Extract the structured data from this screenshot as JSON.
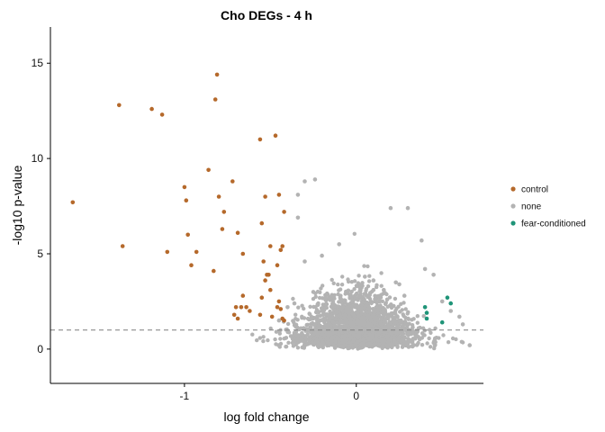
{
  "chart_data": {
    "type": "scatter",
    "title": "Cho DEGs - 4 h",
    "xlabel": "log fold change",
    "ylabel": "-log10 p-value",
    "xlim": [
      -1.78,
      0.74
    ],
    "ylim": [
      -1.8,
      16.9
    ],
    "xticks": [
      -1,
      0
    ],
    "xtick_labels": [
      "-1",
      "0"
    ],
    "yticks": [
      0,
      5,
      10,
      15
    ],
    "ytick_labels": [
      "0",
      "5",
      "10",
      "15"
    ],
    "grid": false,
    "threshold_line": {
      "y": 1.0,
      "style": "dashed",
      "color": "#8c8c8c"
    },
    "legend": {
      "position": "right",
      "entries": [
        {
          "label": "control",
          "color": "#b5692b"
        },
        {
          "label": "none",
          "color": "#b3b3b3"
        },
        {
          "label": "fear-conditioned",
          "color": "#1f9478"
        }
      ]
    },
    "series": [
      {
        "name": "control",
        "color": "#b5692b",
        "x": [
          -1.65,
          -1.38,
          -1.36,
          -1.19,
          -1.13,
          -1.0,
          -0.99,
          -0.98,
          -0.96,
          -1.1,
          -0.93,
          -0.86,
          -0.83,
          -0.82,
          -0.81,
          -0.77,
          -0.78,
          -0.8,
          -0.72,
          -0.69,
          -0.66,
          -0.66,
          -0.67,
          -0.64,
          -0.62,
          -0.56,
          -0.54,
          -0.53,
          -0.52,
          -0.51,
          -0.5,
          -0.47,
          -0.46,
          -0.45,
          -0.44,
          -0.43,
          -0.42,
          -0.55,
          -0.55,
          -0.45,
          -0.5,
          -0.49,
          -0.46,
          -0.44,
          -0.43,
          -0.42,
          -0.53,
          -0.56,
          -0.69,
          -0.71,
          -0.7
        ],
        "y": [
          7.7,
          12.8,
          5.4,
          12.6,
          12.3,
          8.5,
          7.8,
          6.0,
          4.4,
          5.1,
          5.1,
          9.4,
          4.1,
          13.1,
          14.4,
          7.2,
          6.3,
          8.0,
          8.8,
          6.1,
          5.0,
          2.8,
          2.2,
          2.2,
          2.0,
          11.0,
          4.6,
          3.6,
          3.9,
          3.9,
          5.4,
          11.2,
          4.4,
          8.1,
          5.2,
          5.4,
          7.2,
          6.6,
          2.7,
          2.5,
          3.1,
          1.7,
          2.2,
          2.1,
          1.6,
          1.5,
          8.0,
          1.8,
          1.6,
          1.8,
          2.2
        ]
      },
      {
        "name": "none",
        "color": "#b3b3b3",
        "x": [
          -0.34,
          -0.34,
          -0.3,
          -0.24,
          -0.2,
          -0.1,
          0.2,
          0.3,
          0.38,
          0.4,
          0.45,
          0.5,
          0.55,
          0.6,
          0.62,
          0.66,
          -0.45,
          -0.4,
          0.16,
          0.23,
          -0.36,
          -0.3,
          -0.25,
          0.1,
          0.18,
          0.25,
          0.28,
          0.1,
          0.05
        ],
        "y": [
          8.1,
          6.9,
          8.8,
          8.9,
          4.9,
          5.5,
          7.4,
          7.4,
          5.7,
          4.2,
          3.9,
          2.5,
          2.0,
          1.7,
          1.3,
          0.2,
          1.5,
          2.2,
          3.1,
          3.5,
          2.4,
          4.6,
          3.0,
          3.1,
          2.6,
          3.4,
          2.8,
          3.6,
          3.8
        ]
      },
      {
        "name": "fear-conditioned",
        "color": "#1f9478",
        "x": [
          0.4,
          0.41,
          0.41,
          0.5,
          0.53,
          0.55
        ],
        "y": [
          2.2,
          1.9,
          1.6,
          1.4,
          2.7,
          2.4
        ]
      }
    ],
    "background_cloud_note": ""
  }
}
